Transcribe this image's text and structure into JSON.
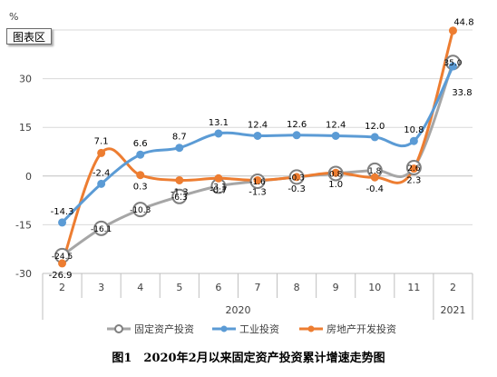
{
  "chart_area_label": "图表区",
  "caption": "图1　2020年2月以来固定资产投资累计增速走势图",
  "chart_data": {
    "type": "line",
    "y_unit": "%",
    "ylim": [
      -30,
      45
    ],
    "y_ticks": [
      -30,
      -15,
      0,
      15,
      30,
      45
    ],
    "y_tick_labels": [
      "-30",
      "-15",
      "0",
      "15",
      "30",
      ""
    ],
    "categories": [
      "2",
      "3",
      "4",
      "5",
      "6",
      "7",
      "8",
      "9",
      "10",
      "11",
      "2"
    ],
    "year_groups": [
      {
        "label": "2020",
        "from": 0,
        "to": 9
      },
      {
        "label": "2021",
        "from": 10,
        "to": 10
      }
    ],
    "series": [
      {
        "name": "固定资产投资",
        "color": "#a6a6a6",
        "marker": "hollow-circle",
        "values": [
          -24.5,
          -16.1,
          -10.3,
          -6.3,
          -3.1,
          -1.6,
          -0.3,
          0.8,
          1.8,
          2.6,
          35.0
        ],
        "point_labels": [
          "-24.5",
          "-16.1",
          "-10.3",
          "-6.3",
          "-3.1",
          "-1.6",
          "-0.3",
          "0.8",
          "1.8",
          "2.6",
          "35.0"
        ]
      },
      {
        "name": "工业投资",
        "color": "#5b9bd5",
        "marker": "filled-circle",
        "values": [
          -14.3,
          -2.4,
          6.6,
          8.7,
          13.1,
          12.4,
          12.6,
          12.4,
          12.0,
          10.8,
          33.8
        ],
        "point_labels": [
          "-14.3",
          "-2.4",
          "6.6",
          "8.7",
          "13.1",
          "12.4",
          "12.6",
          "12.4",
          "12.0",
          "10.8",
          "33.8"
        ]
      },
      {
        "name": "房地产开发投资",
        "color": "#ed7d31",
        "marker": "filled-circle",
        "values": [
          -26.9,
          7.1,
          0.3,
          -1.3,
          -0.7,
          -1.3,
          -0.3,
          1.0,
          -0.4,
          2.3,
          44.8
        ],
        "point_labels": [
          "-26.9",
          "7.1",
          "0.3",
          "-1.3",
          "-0.7",
          "-1.3",
          "-0.3",
          "1.0",
          "-0.4",
          "2.3",
          "44.8"
        ]
      }
    ]
  }
}
